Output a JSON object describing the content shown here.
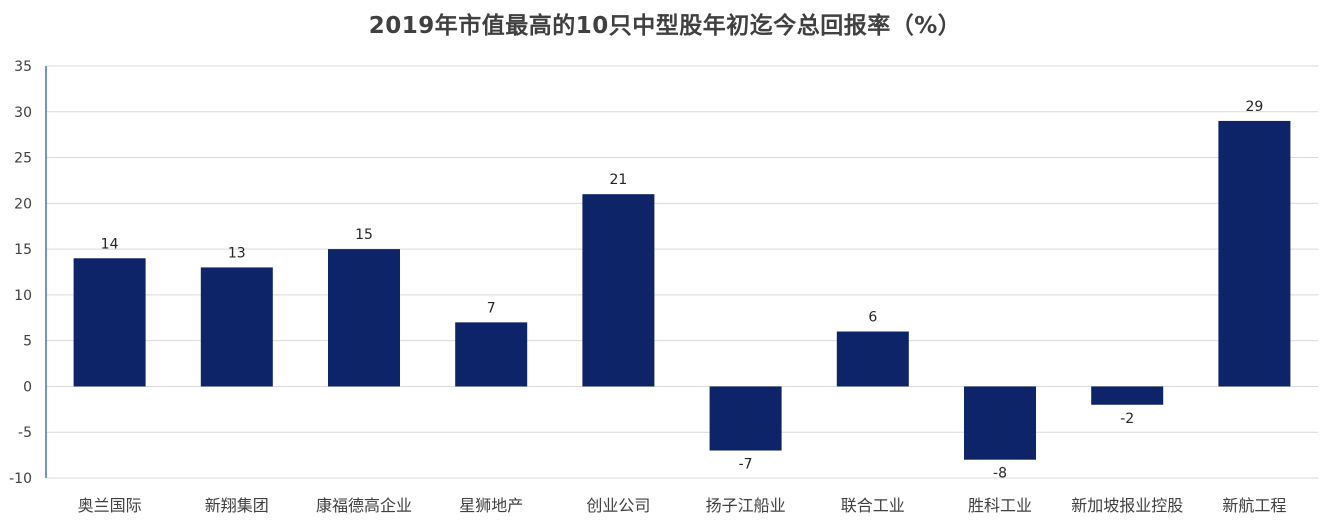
{
  "chart_data": {
    "type": "bar",
    "title": "2019年市值最高的10只中型股年初迄今总回报率（%）",
    "categories": [
      "奥兰国际",
      "新翔集团",
      "康福德高企业",
      "星狮地产",
      "创业公司",
      "扬子江船业",
      "联合工业",
      "胜科工业",
      "新加坡报业控股",
      "新航工程"
    ],
    "values": [
      14,
      13,
      15,
      7,
      21,
      -7,
      6,
      -8,
      -2,
      29
    ],
    "yticks": [
      35,
      30,
      25,
      20,
      15,
      10,
      5,
      0,
      -5,
      -10
    ],
    "ylim": [
      -10,
      35
    ],
    "xlabel": "",
    "ylabel": "",
    "grid": true,
    "bar_color": "#0e2469",
    "grid_color": "#d9d9d9",
    "axis_color": "#4472c4"
  }
}
